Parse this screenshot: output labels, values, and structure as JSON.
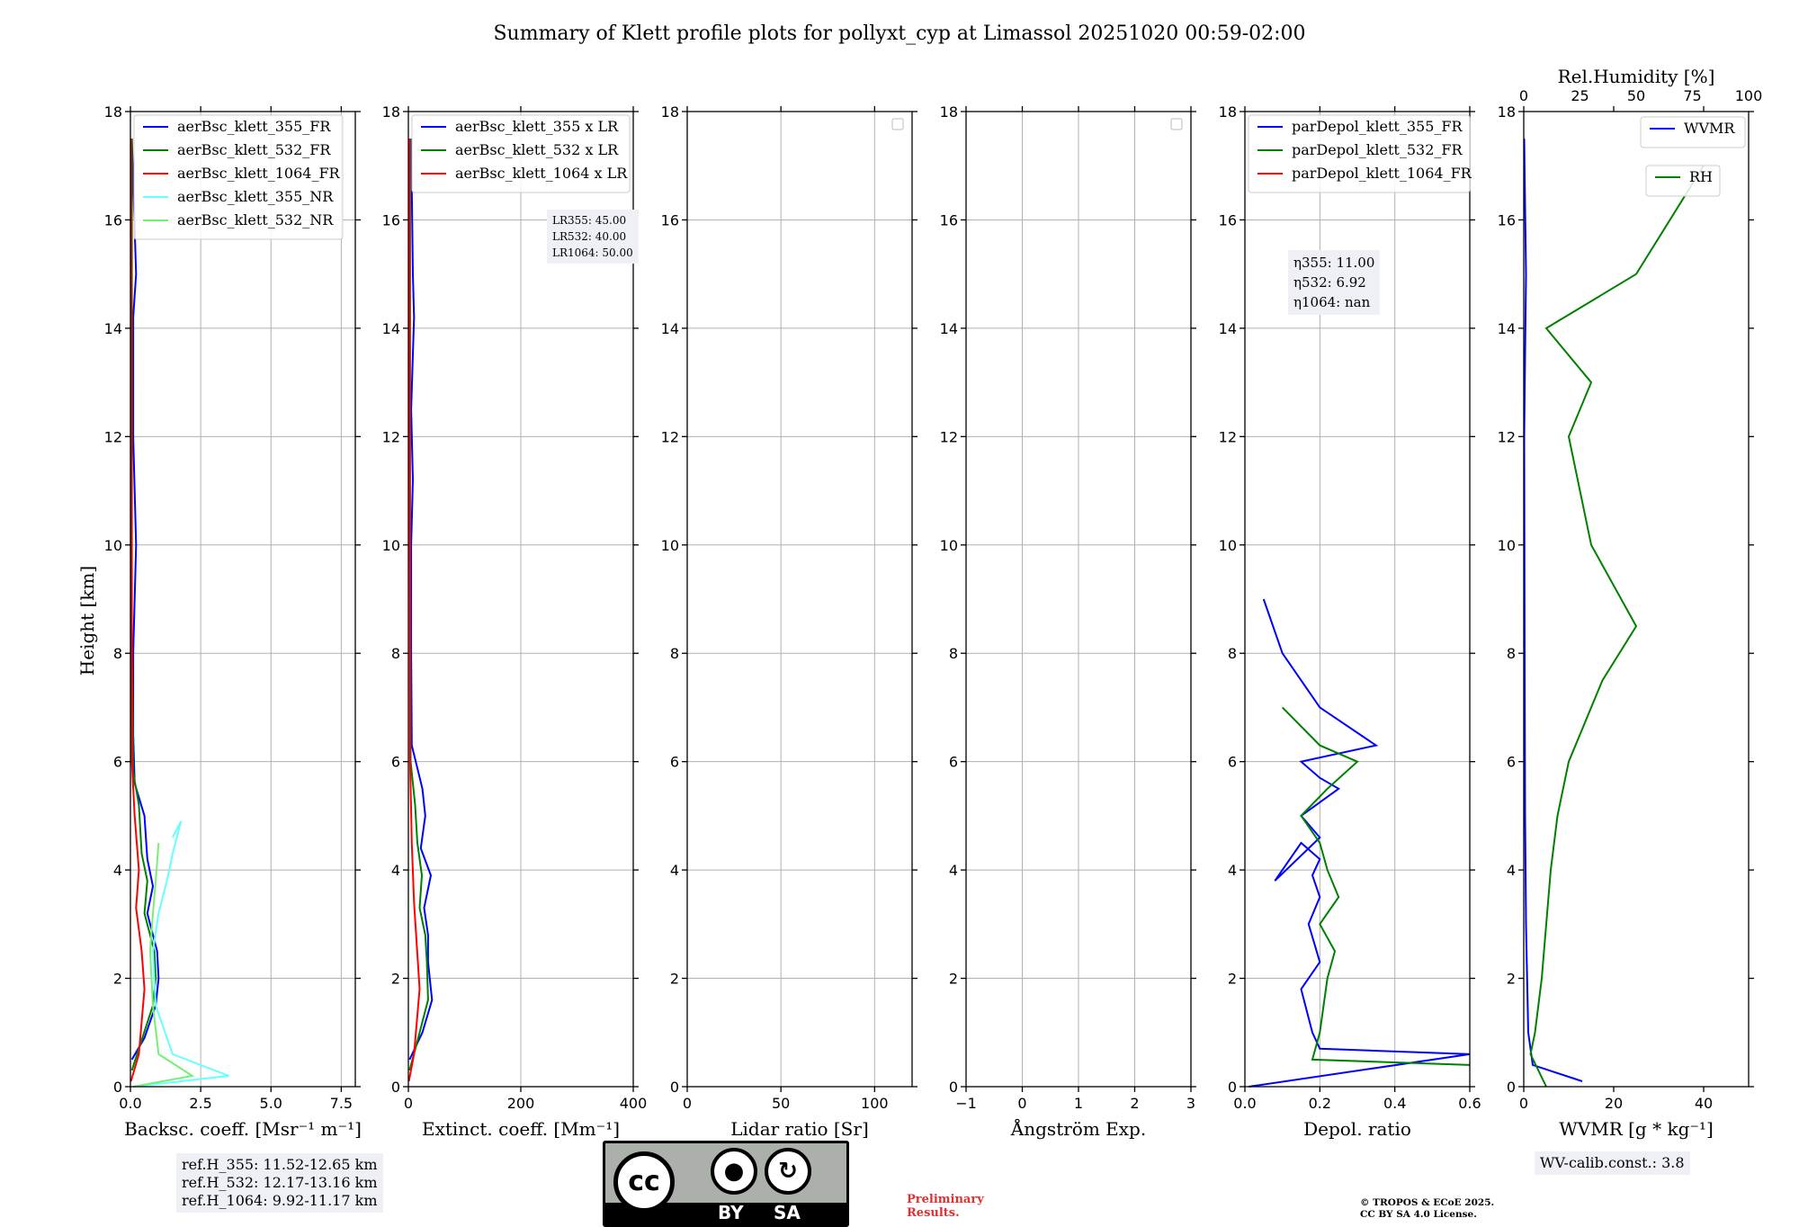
{
  "title": "Summary of Klett profile plots for pollyxt_cyp at Limassol 20251020 00:59-02:00",
  "ylabel": "Height [km]",
  "yticks": [
    "0",
    "2",
    "4",
    "6",
    "8",
    "10",
    "12",
    "14",
    "16",
    "18"
  ],
  "panels": [
    {
      "xlabel": "Backsc. coeff. [Msr⁻¹ m⁻¹]",
      "xticks": [
        "0.0",
        "2.5",
        "5.0",
        "7.5"
      ]
    },
    {
      "xlabel": "Extinct. coeff. [Mm⁻¹]",
      "xticks": [
        "0",
        "200",
        "400"
      ]
    },
    {
      "xlabel": "Lidar ratio [Sr]",
      "xticks": [
        "0",
        "50",
        "100"
      ]
    },
    {
      "xlabel": "Ångström Exp.",
      "xticks": [
        "−1",
        "0",
        "1",
        "2",
        "3"
      ]
    },
    {
      "xlabel": "Depol. ratio",
      "xticks": [
        "0.0",
        "0.2",
        "0.4",
        "0.6"
      ]
    },
    {
      "xlabel": "WVMR [g * kg⁻¹]",
      "xticks": [
        "0",
        "20",
        "40"
      ],
      "toplabel": "Rel.Humidity [%]",
      "topticks": [
        "0",
        "25",
        "50",
        "75",
        "100"
      ]
    }
  ],
  "legends": {
    "panel1": [
      "aerBsc_klett_355_FR",
      "aerBsc_klett_532_FR",
      "aerBsc_klett_1064_FR",
      "aerBsc_klett_355_NR",
      "aerBsc_klett_532_NR"
    ],
    "panel2": [
      "aerBsc_klett_355 x LR",
      "aerBsc_klett_532 x LR",
      "aerBsc_klett_1064 x LR"
    ],
    "panel5": [
      "parDepol_klett_355_FR",
      "parDepol_klett_532_FR",
      "parDepol_klett_1064_FR"
    ],
    "panel6a": [
      "WVMR"
    ],
    "panel6b": [
      "RH"
    ]
  },
  "annotations": {
    "lr": [
      "LR355: 45.00",
      "LR532: 40.00",
      "LR1064: 50.00"
    ],
    "eta": [
      "η355: 11.00",
      "η532: 6.92",
      "η1064: nan"
    ],
    "refh": [
      "ref.H_355: 11.52-12.65 km",
      "ref.H_532: 12.17-13.16 km",
      "ref.H_1064: 9.92-11.17 km"
    ],
    "wvcalib": "WV-calib.const.: 3.8",
    "preliminary": "Preliminary\nResults.",
    "copyright": "© TROPOS & ECoE 2025.\nCC BY SA 4.0 License.",
    "cc_labels": [
      "BY",
      "SA"
    ]
  },
  "colors": {
    "b355": "#0000ff",
    "b532": "#008000",
    "b1064": "#ff0000",
    "nr355": "#66ffff",
    "nr532": "#77ee77",
    "annbg": "#eef0f6"
  },
  "chart_data": [
    {
      "type": "line",
      "name": "Backscatter",
      "xlim": [
        0,
        8
      ],
      "ylim": [
        0,
        18
      ],
      "grid": true,
      "legend": "top-left",
      "series": [
        {
          "name": "aerBsc_klett_355_FR",
          "x": [
            0.05,
            0.5,
            0.9,
            1.0,
            0.95,
            0.6,
            0.8,
            0.6,
            0.5,
            0.15,
            0.1,
            0.1,
            0.2,
            0.1,
            0.1,
            0.1,
            0.2,
            0.05
          ],
          "y": [
            0.5,
            0.9,
            1.5,
            2.0,
            2.5,
            3.2,
            3.7,
            4.2,
            5.0,
            5.6,
            6.5,
            8.0,
            10.0,
            12.0,
            13.0,
            14.2,
            15.0,
            17.5
          ]
        },
        {
          "name": "aerBsc_klett_532_FR",
          "x": [
            0.05,
            0.3,
            0.8,
            0.9,
            0.85,
            0.5,
            0.6,
            0.4,
            0.3,
            0.1,
            0.05,
            0.05,
            0.05
          ],
          "y": [
            0.3,
            0.7,
            1.5,
            2.0,
            2.5,
            3.2,
            3.8,
            4.3,
            5.2,
            5.8,
            8.0,
            12.0,
            17.5
          ]
        },
        {
          "name": "aerBsc_klett_1064_FR",
          "x": [
            0.02,
            0.3,
            0.5,
            0.4,
            0.2,
            0.3,
            0.15,
            0.05,
            0.02
          ],
          "y": [
            0.1,
            0.6,
            1.8,
            2.5,
            3.3,
            4.0,
            5.0,
            6.0,
            17.5
          ]
        },
        {
          "name": "aerBsc_klett_355_NR",
          "x": [
            0.1,
            3.5,
            1.5,
            0.9,
            0.8,
            1.0,
            1.3,
            1.5,
            1.8,
            1.5
          ],
          "y": [
            0.0,
            0.2,
            0.6,
            1.5,
            2.5,
            3.2,
            3.8,
            4.3,
            4.9,
            4.6
          ]
        },
        {
          "name": "aerBsc_klett_532_NR",
          "x": [
            0.1,
            2.2,
            1.0,
            0.8,
            0.7,
            0.8,
            0.9,
            1.0
          ],
          "y": [
            0.0,
            0.2,
            0.6,
            1.5,
            2.5,
            3.2,
            3.8,
            4.5
          ]
        }
      ]
    },
    {
      "type": "line",
      "name": "Extinction",
      "xlim": [
        0,
        400
      ],
      "ylim": [
        0,
        18
      ],
      "grid": true,
      "legend": "top-left",
      "series": [
        {
          "name": "aerBsc_klett_355 x LR",
          "x": [
            2,
            25,
            42,
            35,
            35,
            28,
            40,
            22,
            30,
            25,
            6,
            5,
            5,
            8,
            5,
            10,
            8,
            5
          ],
          "y": [
            0.5,
            1.0,
            1.6,
            2.3,
            2.8,
            3.3,
            3.9,
            4.4,
            5.0,
            5.5,
            6.3,
            8.0,
            10.0,
            11.2,
            12.5,
            14.2,
            15.0,
            17.5
          ]
        },
        {
          "name": "aerBsc_klett_532 x LR",
          "x": [
            2,
            15,
            35,
            33,
            30,
            20,
            24,
            16,
            12,
            4,
            3,
            3
          ],
          "y": [
            0.3,
            0.8,
            1.6,
            2.3,
            2.8,
            3.3,
            3.9,
            4.5,
            5.2,
            6.0,
            10.0,
            17.5
          ]
        },
        {
          "name": "aerBsc_klett_1064 x LR",
          "x": [
            1,
            10,
            20,
            15,
            10,
            6,
            3,
            2
          ],
          "y": [
            0.1,
            0.6,
            1.8,
            2.6,
            3.4,
            4.5,
            6.0,
            17.5
          ]
        }
      ]
    },
    {
      "type": "line",
      "name": "Lidar ratio",
      "xlim": [
        0,
        120
      ],
      "ylim": [
        0,
        18
      ],
      "grid": true,
      "series": []
    },
    {
      "type": "line",
      "name": "Angstrom",
      "xlim": [
        -1,
        3
      ],
      "ylim": [
        0,
        18
      ],
      "grid": true,
      "series": []
    },
    {
      "type": "line",
      "name": "Depolarization",
      "xlim": [
        0,
        0.6
      ],
      "ylim": [
        0,
        18
      ],
      "grid": true,
      "legend": "top-left",
      "series": [
        {
          "name": "parDepol_klett_355_FR",
          "x": [
            0.01,
            0.6,
            0.2,
            0.18,
            0.15,
            0.2,
            0.17,
            0.2,
            0.18,
            0.2,
            0.15,
            0.08,
            0.2,
            0.15,
            0.25,
            0.2,
            0.15,
            0.35,
            0.2,
            0.1,
            0.05
          ],
          "y": [
            0.0,
            0.6,
            0.7,
            1.0,
            1.8,
            2.3,
            3.0,
            3.5,
            3.9,
            4.2,
            4.5,
            3.8,
            4.6,
            5.0,
            5.5,
            5.7,
            6.0,
            6.3,
            7.0,
            8.0,
            9.0
          ]
        },
        {
          "name": "parDepol_klett_532_FR",
          "x": [
            0.6,
            0.18,
            0.2,
            0.22,
            0.24,
            0.2,
            0.25,
            0.22,
            0.2,
            0.15,
            0.22,
            0.3,
            0.2,
            0.1
          ],
          "y": [
            0.4,
            0.5,
            1.0,
            2.0,
            2.5,
            3.0,
            3.5,
            4.0,
            4.5,
            5.0,
            5.5,
            6.0,
            6.3,
            7.0
          ]
        },
        {
          "name": "parDepol_klett_1064_FR",
          "x": [],
          "y": []
        }
      ]
    },
    {
      "type": "line",
      "name": "Water vapor",
      "xlim": [
        0,
        50
      ],
      "ylim": [
        0,
        18
      ],
      "xlabel_top": "Rel.Humidity [%]",
      "xlim_top": [
        0,
        100
      ],
      "grid": false,
      "legend": "top-right",
      "series": [
        {
          "name": "WVMR",
          "x": [
            13,
            2,
            1,
            0.5,
            0.3,
            0.2,
            0.1,
            0.5,
            0.1
          ],
          "y": [
            0.1,
            0.4,
            1.0,
            3.0,
            5.0,
            8.0,
            12.0,
            15.0,
            17.5
          ]
        },
        {
          "name": "RH",
          "x": [
            10,
            3,
            5,
            8,
            10,
            12,
            15,
            20,
            35,
            50,
            30,
            20,
            30,
            10,
            50,
            80
          ],
          "y": [
            0.0,
            0.6,
            1.0,
            2.0,
            3.0,
            4.0,
            5.0,
            6.0,
            7.5,
            8.5,
            10.0,
            12.0,
            13.0,
            14.0,
            15.0,
            17.0
          ]
        }
      ]
    }
  ]
}
